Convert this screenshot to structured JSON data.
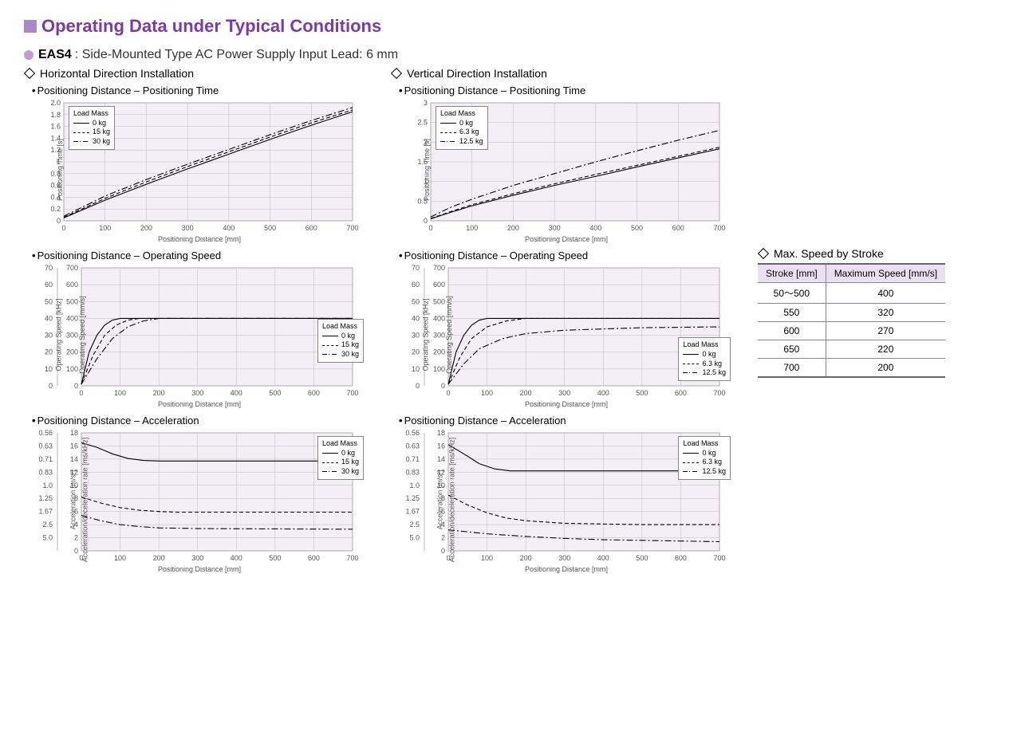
{
  "page": {
    "title": "Operating Data under Typical Conditions",
    "accent_square": "#a988c9",
    "title_color": "#7a3aa8"
  },
  "product": {
    "bullet_color": "#c299d6",
    "model": "EAS4",
    "desc": ": Side-Mounted Type  AC Power Supply Input  Lead: 6 mm"
  },
  "columns": {
    "left_head": "Horizontal Direction Installation",
    "right_head": "Vertical Direction Installation"
  },
  "shared": {
    "xlabel": "Positioning Distance [mm]",
    "xlim": [
      0,
      700
    ],
    "xtick_step": 100,
    "plot_bg": "#f4eef6",
    "grid_color": "#bcbcbc",
    "tick_font": 9,
    "label_font": 9,
    "line_color": "#000000",
    "line_width": 1.1
  },
  "legend_h": {
    "title": "Load Mass",
    "items": [
      "0 kg",
      "15 kg",
      "30 kg"
    ]
  },
  "legend_v": {
    "title": "Load Mass",
    "items": [
      "0 kg",
      "6.3 kg",
      "12.5 kg"
    ]
  },
  "chart_h_time": {
    "title": "Positioning Distance – Positioning Time",
    "ylabel": "Positioning Time [s]",
    "ylim": [
      0,
      2.0
    ],
    "ytick_step": 0.2,
    "legend_pos": "top-left",
    "series": [
      {
        "style": "solid",
        "pts": [
          [
            0,
            0.05
          ],
          [
            50,
            0.2
          ],
          [
            100,
            0.35
          ],
          [
            200,
            0.62
          ],
          [
            300,
            0.88
          ],
          [
            400,
            1.13
          ],
          [
            500,
            1.38
          ],
          [
            600,
            1.62
          ],
          [
            700,
            1.85
          ]
        ]
      },
      {
        "style": "dash",
        "pts": [
          [
            0,
            0.06
          ],
          [
            50,
            0.22
          ],
          [
            100,
            0.38
          ],
          [
            200,
            0.66
          ],
          [
            300,
            0.92
          ],
          [
            400,
            1.17
          ],
          [
            500,
            1.42
          ],
          [
            600,
            1.66
          ],
          [
            700,
            1.88
          ]
        ]
      },
      {
        "style": "dashdot",
        "pts": [
          [
            0,
            0.08
          ],
          [
            50,
            0.25
          ],
          [
            100,
            0.42
          ],
          [
            200,
            0.7
          ],
          [
            300,
            0.96
          ],
          [
            400,
            1.21
          ],
          [
            500,
            1.46
          ],
          [
            600,
            1.7
          ],
          [
            700,
            1.92
          ]
        ]
      }
    ]
  },
  "chart_v_time": {
    "title": "Positioning Distance – Positioning Time",
    "ylabel": "Positioning Time [s]",
    "ylim": [
      0,
      3.0
    ],
    "ytick_step": 0.5,
    "legend_pos": "top-left",
    "series": [
      {
        "style": "solid",
        "pts": [
          [
            0,
            0.05
          ],
          [
            50,
            0.22
          ],
          [
            100,
            0.38
          ],
          [
            200,
            0.65
          ],
          [
            300,
            0.9
          ],
          [
            400,
            1.13
          ],
          [
            500,
            1.37
          ],
          [
            600,
            1.6
          ],
          [
            700,
            1.83
          ]
        ]
      },
      {
        "style": "dash",
        "pts": [
          [
            0,
            0.06
          ],
          [
            50,
            0.24
          ],
          [
            100,
            0.41
          ],
          [
            200,
            0.69
          ],
          [
            300,
            0.94
          ],
          [
            400,
            1.18
          ],
          [
            500,
            1.41
          ],
          [
            600,
            1.64
          ],
          [
            700,
            1.87
          ]
        ]
      },
      {
        "style": "dashdot",
        "pts": [
          [
            0,
            0.1
          ],
          [
            50,
            0.35
          ],
          [
            100,
            0.55
          ],
          [
            200,
            0.9
          ],
          [
            300,
            1.2
          ],
          [
            400,
            1.5
          ],
          [
            500,
            1.78
          ],
          [
            600,
            2.05
          ],
          [
            700,
            2.3
          ]
        ]
      }
    ]
  },
  "chart_h_speed": {
    "title": "Positioning Distance – Operating Speed",
    "ylabel1": "Operating Speed [kHz]",
    "ylabel2": "Operating Speed [mm/s]",
    "ylim1": [
      0,
      70
    ],
    "ytick1_step": 10,
    "ylim2": [
      0,
      700
    ],
    "ytick2_step": 100,
    "legend_pos": "mid-right",
    "series": [
      {
        "style": "solid",
        "pts": [
          [
            0,
            10
          ],
          [
            20,
            200
          ],
          [
            40,
            300
          ],
          [
            60,
            360
          ],
          [
            80,
            390
          ],
          [
            100,
            400
          ],
          [
            700,
            400
          ]
        ]
      },
      {
        "style": "dash",
        "pts": [
          [
            0,
            10
          ],
          [
            30,
            180
          ],
          [
            60,
            300
          ],
          [
            90,
            360
          ],
          [
            120,
            390
          ],
          [
            150,
            400
          ],
          [
            700,
            400
          ]
        ]
      },
      {
        "style": "dashdot",
        "pts": [
          [
            0,
            10
          ],
          [
            40,
            160
          ],
          [
            80,
            280
          ],
          [
            120,
            350
          ],
          [
            160,
            385
          ],
          [
            200,
            400
          ],
          [
            700,
            400
          ]
        ]
      }
    ]
  },
  "chart_v_speed": {
    "title": "Positioning Distance – Operating Speed",
    "ylabel1": "Operating Speed [kHz]",
    "ylabel2": "Operating Speed [mm/s]",
    "ylim1": [
      0,
      70
    ],
    "ytick1_step": 10,
    "ylim2": [
      0,
      700
    ],
    "ytick2_step": 100,
    "legend_pos": "bottom-right",
    "series": [
      {
        "style": "solid",
        "pts": [
          [
            0,
            10
          ],
          [
            20,
            200
          ],
          [
            40,
            300
          ],
          [
            60,
            360
          ],
          [
            80,
            390
          ],
          [
            100,
            400
          ],
          [
            700,
            400
          ]
        ]
      },
      {
        "style": "dash",
        "pts": [
          [
            0,
            10
          ],
          [
            30,
            170
          ],
          [
            60,
            280
          ],
          [
            100,
            350
          ],
          [
            150,
            385
          ],
          [
            200,
            400
          ],
          [
            700,
            400
          ]
        ]
      },
      {
        "style": "dashdot",
        "pts": [
          [
            0,
            10
          ],
          [
            40,
            130
          ],
          [
            80,
            220
          ],
          [
            140,
            280
          ],
          [
            200,
            310
          ],
          [
            300,
            330
          ],
          [
            500,
            345
          ],
          [
            700,
            350
          ]
        ]
      }
    ]
  },
  "chart_h_accel": {
    "title": "Positioning Distance – Acceleration",
    "ylabel1": "Acceleration/deceleration rate [ms/kHz]",
    "ylabel2": "Acceleration [m/s²]",
    "ylim2": [
      0,
      18
    ],
    "ytick2_step": 2,
    "yticks1": [
      "",
      "5.0",
      "2.5",
      "1.67",
      "1.25",
      "1.0",
      "0.83",
      "0.71",
      "0.63",
      "0.56"
    ],
    "legend_pos": "top-right",
    "series": [
      {
        "style": "solid",
        "pts": [
          [
            0,
            16.5
          ],
          [
            40,
            15.8
          ],
          [
            80,
            14.8
          ],
          [
            120,
            14.1
          ],
          [
            160,
            13.8
          ],
          [
            200,
            13.7
          ],
          [
            700,
            13.7
          ]
        ]
      },
      {
        "style": "dash",
        "pts": [
          [
            0,
            8.2
          ],
          [
            50,
            7.3
          ],
          [
            100,
            6.6
          ],
          [
            150,
            6.2
          ],
          [
            200,
            6.0
          ],
          [
            250,
            5.9
          ],
          [
            700,
            5.9
          ]
        ]
      },
      {
        "style": "dashdot",
        "pts": [
          [
            0,
            5.4
          ],
          [
            50,
            4.6
          ],
          [
            100,
            4.0
          ],
          [
            150,
            3.7
          ],
          [
            200,
            3.5
          ],
          [
            300,
            3.4
          ],
          [
            700,
            3.3
          ]
        ]
      }
    ]
  },
  "chart_v_accel": {
    "title": "Positioning Distance – Acceleration",
    "ylabel1": "Acceleration/deceleration rate [ms/kHz]",
    "ylabel2": "Acceleration [m/s²]",
    "ylim2": [
      0,
      18
    ],
    "ytick2_step": 2,
    "yticks1": [
      "",
      "5.0",
      "2.5",
      "1.67",
      "1.25",
      "1.0",
      "0.83",
      "0.71",
      "0.63",
      "0.56"
    ],
    "legend_pos": "top-right",
    "series": [
      {
        "style": "solid",
        "pts": [
          [
            0,
            16.2
          ],
          [
            40,
            14.8
          ],
          [
            80,
            13.3
          ],
          [
            120,
            12.5
          ],
          [
            160,
            12.2
          ],
          [
            200,
            12.2
          ],
          [
            700,
            12.2
          ]
        ]
      },
      {
        "style": "dash",
        "pts": [
          [
            0,
            8.5
          ],
          [
            50,
            7.0
          ],
          [
            100,
            5.8
          ],
          [
            150,
            5.0
          ],
          [
            200,
            4.6
          ],
          [
            300,
            4.2
          ],
          [
            500,
            4.0
          ],
          [
            700,
            4.0
          ]
        ]
      },
      {
        "style": "dashdot",
        "pts": [
          [
            0,
            3.2
          ],
          [
            50,
            2.9
          ],
          [
            100,
            2.6
          ],
          [
            200,
            2.2
          ],
          [
            300,
            1.9
          ],
          [
            400,
            1.7
          ],
          [
            500,
            1.6
          ],
          [
            600,
            1.5
          ],
          [
            700,
            1.4
          ]
        ]
      }
    ]
  },
  "speed_table": {
    "title": "Max. Speed by Stroke",
    "headers": [
      "Stroke [mm]",
      "Maximum Speed [mm/s]"
    ],
    "rows": [
      [
        "50～500",
        "400"
      ],
      [
        "550",
        "320"
      ],
      [
        "600",
        "270"
      ],
      [
        "650",
        "220"
      ],
      [
        "700",
        "200"
      ]
    ]
  }
}
